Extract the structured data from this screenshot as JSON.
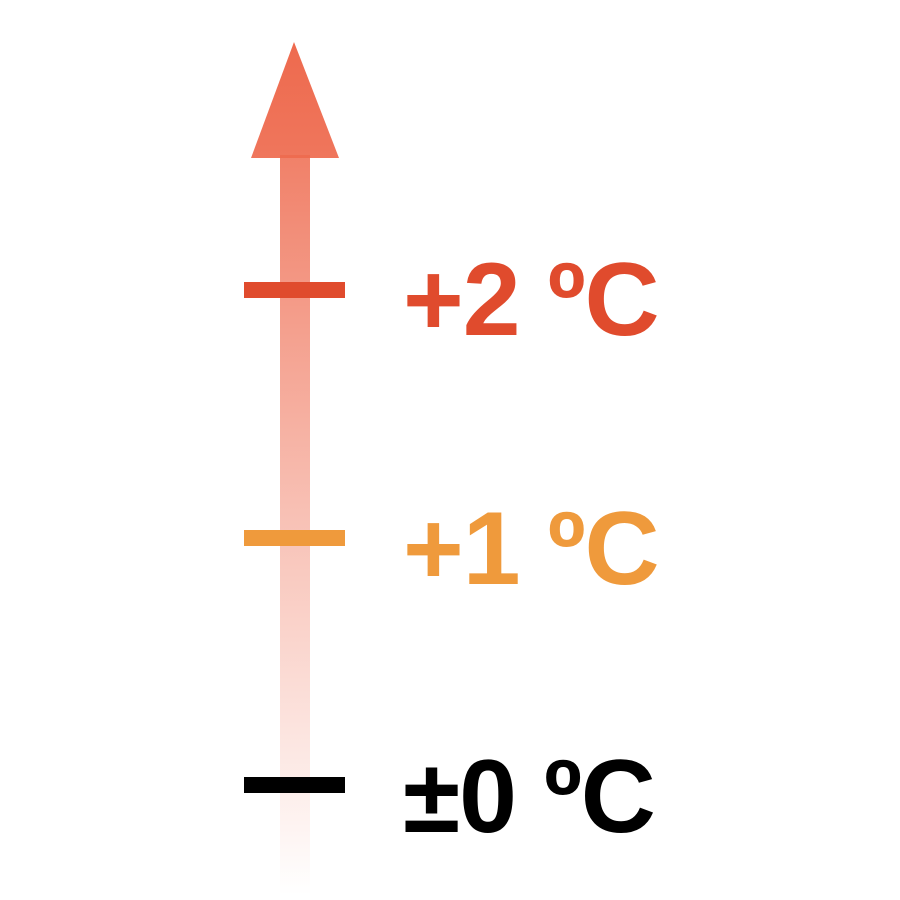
{
  "scale": {
    "marks": [
      {
        "label": "+2 ºC",
        "color": "#E04B2D"
      },
      {
        "label": "+1 ºC",
        "color": "#EF9A3C"
      },
      {
        "label": "±0 ºC",
        "color": "#000000"
      }
    ],
    "arrow_color_top": "#EE6A4E",
    "arrow_color_bottom": "#FFFFFF"
  }
}
